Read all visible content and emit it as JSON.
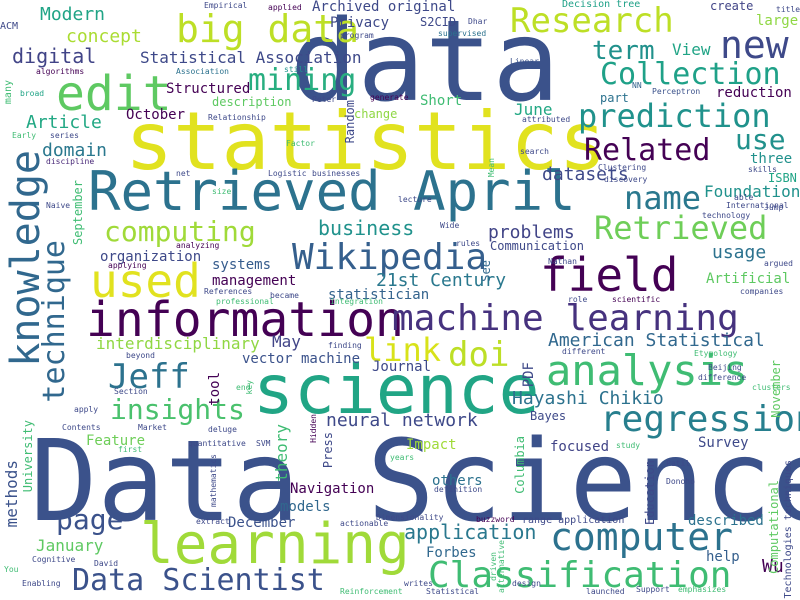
{
  "words": {
    "data_science": {
      "text": "Data Science",
      "color": "#3b528b"
    },
    "data": {
      "text": "data",
      "color": "#3b528b"
    },
    "statistics": {
      "text": "statistics",
      "color": "#e1e21f"
    },
    "retrieved_april": {
      "text": "Retrieved April",
      "color": "#2c728e"
    },
    "science": {
      "text": "science",
      "color": "#21a585"
    },
    "learning": {
      "text": "learning",
      "color": "#a0da39"
    },
    "information": {
      "text": "information",
      "color": "#440154"
    },
    "machine_learning": {
      "text": "machine learning",
      "color": "#46327e"
    },
    "knowledge": {
      "text": "knowledge",
      "color": "#31688e"
    },
    "edit": {
      "text": "edit",
      "color": "#5ec962"
    },
    "big_data": {
      "text": "big data",
      "color": "#bddf26"
    },
    "field": {
      "text": "field",
      "color": "#440154"
    },
    "analysis": {
      "text": "analysis",
      "color": "#3fbc73"
    },
    "research": {
      "text": "Research",
      "color": "#bddf26"
    },
    "new": {
      "text": "new",
      "color": "#3e4989"
    },
    "used": {
      "text": "used",
      "color": "#e1e21f"
    },
    "wikipedia": {
      "text": "Wikipedia",
      "color": "#355f8d"
    },
    "classification": {
      "text": "Classification",
      "color": "#3fbc73"
    },
    "data_scientist": {
      "text": "Data Scientist",
      "color": "#3b528b"
    },
    "computer": {
      "text": "computer",
      "color": "#2c728e"
    },
    "regression": {
      "text": "regression",
      "color": "#277f8e"
    },
    "prediction": {
      "text": "prediction",
      "color": "#20928c"
    },
    "collection": {
      "text": "Collection",
      "color": "#1fa188"
    },
    "technique": {
      "text": "technique",
      "color": "#31688e"
    },
    "related": {
      "text": "Related",
      "color": "#440154"
    },
    "retrieved": {
      "text": "Retrieved",
      "color": "#6ece58"
    },
    "name": {
      "text": "name",
      "color": "#2a788e"
    },
    "computing": {
      "text": "computing",
      "color": "#a0da39"
    },
    "mining": {
      "text": "mining",
      "color": "#28ae80"
    },
    "term": {
      "text": "term",
      "color": "#21918c"
    },
    "use": {
      "text": "use",
      "color": "#21918c"
    },
    "doi": {
      "text": "doi",
      "color": "#bddf26"
    },
    "jeff": {
      "text": "Jeff",
      "color": "#2c728e"
    },
    "insights": {
      "text": "insights",
      "color": "#4ac16d"
    },
    "link": {
      "text": "link",
      "color": "#d8e219"
    },
    "page": {
      "text": "page",
      "color": "#3b528b"
    },
    "modern": {
      "text": "Modern",
      "color": "#20a486"
    },
    "concept": {
      "text": "concept",
      "color": "#aadc32"
    },
    "statistical_association": {
      "text": "Statistical Association",
      "color": "#3e4989"
    },
    "digital": {
      "text": "digital",
      "color": "#414487"
    },
    "article": {
      "text": "Article",
      "color": "#22a884"
    },
    "domain": {
      "text": "domain",
      "color": "#2a788e"
    },
    "datasets": {
      "text": "datasets",
      "color": "#3e4989"
    },
    "foundation": {
      "text": "Foundation",
      "color": "#20928c"
    },
    "business": {
      "text": "business",
      "color": "#20928c"
    },
    "problems": {
      "text": "problems",
      "color": "#414487"
    },
    "usage": {
      "text": "usage",
      "color": "#2c728e"
    },
    "american_statistical": {
      "text": "American Statistical",
      "color": "#31688e"
    },
    "hayashi_chikio": {
      "text": "Hayashi Chikio",
      "color": "#2c728e"
    },
    "neural_network": {
      "text": "neural network",
      "color": "#3e4989"
    },
    "interdisciplinary": {
      "text": "interdisciplinary",
      "color": "#90d743"
    },
    "century": {
      "text": "21st Century",
      "color": "#2a788e"
    },
    "statistician": {
      "text": "statistician",
      "color": "#33638d"
    },
    "management": {
      "text": "management",
      "color": "#440154"
    },
    "systems": {
      "text": "systems",
      "color": "#365c8d"
    },
    "organization": {
      "text": "organization",
      "color": "#3e4989"
    },
    "application": {
      "text": "application",
      "color": "#2a788e"
    },
    "january": {
      "text": "January",
      "color": "#5ec962"
    },
    "forbes": {
      "text": "Forbes",
      "color": "#31688e"
    },
    "wu": {
      "text": "Wu",
      "color": "#440154"
    },
    "help": {
      "text": "help",
      "color": "#355f8d"
    },
    "described": {
      "text": "described",
      "color": "#2c728e"
    },
    "survey": {
      "text": "Survey",
      "color": "#3e4989"
    },
    "focused": {
      "text": "focused",
      "color": "#414487"
    },
    "impact": {
      "text": "Impact",
      "color": "#a0da39"
    },
    "others": {
      "text": "others",
      "color": "#2c728e"
    },
    "navigation": {
      "text": "Navigation",
      "color": "#440154"
    },
    "models": {
      "text": "models",
      "color": "#31688e"
    },
    "december": {
      "text": "December",
      "color": "#3b528b"
    },
    "feature": {
      "text": "Feature",
      "color": "#6ece58"
    },
    "vector_machine": {
      "text": "vector machine",
      "color": "#3b528b"
    },
    "may": {
      "text": "May",
      "color": "#414487"
    },
    "journal": {
      "text": "Journal",
      "color": "#3e4989"
    },
    "october": {
      "text": "October",
      "color": "#440154"
    },
    "structured": {
      "text": "Structured",
      "color": "#440154"
    },
    "description": {
      "text": "description",
      "color": "#5ec962"
    },
    "short": {
      "text": "Short",
      "color": "#3fbc73"
    },
    "june": {
      "text": "June",
      "color": "#22a884"
    },
    "view": {
      "text": "View",
      "color": "#20a486"
    },
    "privacy": {
      "text": "Privacy",
      "color": "#3e4989"
    },
    "archived_original": {
      "text": "Archived original",
      "color": "#3e4989"
    },
    "s2cid": {
      "text": "S2CID",
      "color": "#3e4989"
    },
    "communication": {
      "text": "Communication",
      "color": "#3e4989"
    },
    "see": {
      "text": "See",
      "color": "#31688e"
    },
    "artificial": {
      "text": "Artificial",
      "color": "#5ec962"
    },
    "three": {
      "text": "three",
      "color": "#21918c"
    },
    "isbn": {
      "text": "ISBN",
      "color": "#20a486"
    },
    "decision_tree": {
      "text": "Decision tree",
      "color": "#1fa188"
    },
    "create": {
      "text": "create",
      "color": "#414487"
    },
    "large": {
      "text": "large",
      "color": "#8fd744"
    },
    "reduction": {
      "text": "reduction",
      "color": "#440154"
    },
    "perceptron": {
      "text": "Perceptron",
      "color": "#3b528b"
    },
    "nn": {
      "text": "NN",
      "color": "#33638d"
    },
    "linear": {
      "text": "Linear",
      "color": "#3b528b"
    },
    "part": {
      "text": "part",
      "color": "#2c728e"
    },
    "change": {
      "text": "change",
      "color": "#8fd744"
    },
    "random": {
      "text": "Random",
      "color": "#3e4989"
    },
    "empirical": {
      "text": "Empirical",
      "color": "#3e4989"
    },
    "applied": {
      "text": "applied",
      "color": "#440154"
    },
    "dhar": {
      "text": "Dhar",
      "color": "#3e4989"
    },
    "supervised": {
      "text": "supervised",
      "color": "#2c728e"
    },
    "program": {
      "text": "program",
      "color": "#3e4989"
    },
    "still": {
      "text": "still",
      "color": "#20928c"
    },
    "association": {
      "text": "Association",
      "color": "#2c728e"
    },
    "peter": {
      "text": "Peter",
      "color": "#3e4989"
    },
    "generate": {
      "text": "generate",
      "color": "#440154"
    },
    "algorithms": {
      "text": "algorithms",
      "color": "#440154"
    },
    "broad": {
      "text": "broad",
      "color": "#20a486"
    },
    "series": {
      "text": "series",
      "color": "#3e4989"
    },
    "relationship": {
      "text": "Relationship",
      "color": "#3e4989"
    },
    "factor": {
      "text": "Factor",
      "color": "#3fbc73"
    },
    "discipline": {
      "text": "discipline",
      "color": "#482878"
    },
    "early": {
      "text": "Early",
      "color": "#3fbc73"
    },
    "naive": {
      "text": "Naive",
      "color": "#3e4989"
    },
    "net": {
      "text": "net",
      "color": "#3e4989"
    },
    "size": {
      "text": "size",
      "color": "#3fbc73"
    },
    "logistic": {
      "text": "Logistic",
      "color": "#3e4989"
    },
    "businesses": {
      "text": "businesses",
      "color": "#3e4989"
    },
    "wide": {
      "text": "Wide",
      "color": "#3e4989"
    },
    "lecture": {
      "text": "lecture",
      "color": "#3e4989"
    },
    "discovery": {
      "text": "discovery",
      "color": "#3e4989"
    },
    "clustering": {
      "text": "Clustering",
      "color": "#3e4989"
    },
    "international": {
      "text": "International",
      "color": "#3e4989"
    },
    "able": {
      "text": "able",
      "color": "#3e4989"
    },
    "jump": {
      "text": "Jump",
      "color": "#3e4989"
    },
    "technology": {
      "text": "technology",
      "color": "#3e4989"
    },
    "argued": {
      "text": "argued",
      "color": "#3e4989"
    },
    "nathan": {
      "text": "Nathan",
      "color": "#3e4989"
    },
    "rules": {
      "text": "rules",
      "color": "#3e4989"
    },
    "applying": {
      "text": "applying",
      "color": "#440154"
    },
    "analyzing": {
      "text": "analyzing",
      "color": "#440154"
    },
    "references": {
      "text": "References",
      "color": "#3e4989"
    },
    "became": {
      "text": "became",
      "color": "#3e4989"
    },
    "integration": {
      "text": "integration",
      "color": "#3fbc73"
    },
    "professional": {
      "text": "professional",
      "color": "#3fbc73"
    },
    "finding": {
      "text": "finding",
      "color": "#3e4989"
    },
    "role": {
      "text": "role",
      "color": "#3e4989"
    },
    "scientific": {
      "text": "scientific",
      "color": "#440154"
    },
    "companies": {
      "text": "companies",
      "color": "#3e4989"
    },
    "different": {
      "text": "different",
      "color": "#3e4989"
    },
    "etymology": {
      "text": "Etymology",
      "color": "#3fbc73"
    },
    "beijing": {
      "text": "Beijing",
      "color": "#3e4989"
    },
    "clusters": {
      "text": "clusters",
      "color": "#3fbc73"
    },
    "difference": {
      "text": "difference",
      "color": "#3e4989"
    },
    "november": {
      "text": "November",
      "color": "#5ec962"
    },
    "beyond": {
      "text": "beyond",
      "color": "#3e4989"
    },
    "section": {
      "text": "Section",
      "color": "#3e4989"
    },
    "end": {
      "text": "end",
      "color": "#3fbc73"
    },
    "key": {
      "text": "key",
      "color": "#3fbc73"
    },
    "tool": {
      "text": "tool",
      "color": "#440154"
    },
    "hidden": {
      "text": "Hidden",
      "color": "#440154"
    },
    "apply": {
      "text": "apply",
      "color": "#3e4989"
    },
    "market": {
      "text": "Market",
      "color": "#3e4989"
    },
    "contents": {
      "text": "Contents",
      "color": "#3e4989"
    },
    "deluge": {
      "text": "deluge",
      "color": "#3e4989"
    },
    "quantitative": {
      "text": "quantitative",
      "color": "#3e4989"
    },
    "svm": {
      "text": "SVM",
      "color": "#3e4989"
    },
    "first": {
      "text": "first",
      "color": "#3fbc73"
    },
    "mathematics": {
      "text": "mathematics",
      "color": "#3e4989"
    },
    "years": {
      "text": "years",
      "color": "#3fbc73"
    },
    "study": {
      "text": "study",
      "color": "#3fbc73"
    },
    "patil": {
      "text": "Patil",
      "color": "#3e4989"
    },
    "donoho": {
      "text": "Donoho",
      "color": "#3e4989"
    },
    "definition": {
      "text": "definition",
      "color": "#3e4989"
    },
    "press": {
      "text": "Press",
      "color": "#3e4989"
    },
    "theory": {
      "text": "theory",
      "color": "#3fbc73"
    },
    "columbia": {
      "text": "Columbia",
      "color": "#3fbc73"
    },
    "university": {
      "text": "University",
      "color": "#3fbc73"
    },
    "methods": {
      "text": "methods",
      "color": "#3b528b"
    },
    "education": {
      "text": "Education",
      "color": "#3e4989"
    },
    "computational": {
      "text": "Computational",
      "color": "#5ec962"
    },
    "technologies_techniques": {
      "text": "Technologies techniques",
      "color": "#3e4989"
    },
    "extract": {
      "text": "extract",
      "color": "#3e4989"
    },
    "actionable": {
      "text": "actionable",
      "color": "#3e4989"
    },
    "dimensionality": {
      "text": "Dimensionality",
      "color": "#3e4989"
    },
    "buzzword": {
      "text": "buzzword",
      "color": "#440154"
    },
    "range_application": {
      "text": "range application",
      "color": "#3e4989"
    },
    "david": {
      "text": "David",
      "color": "#3e4989"
    },
    "cognitive": {
      "text": "Cognitive",
      "color": "#3e4989"
    },
    "enabling": {
      "text": "Enabling",
      "color": "#3e4989"
    },
    "you": {
      "text": "You",
      "color": "#3fbc73"
    },
    "reinforcement": {
      "text": "Reinforcement",
      "color": "#3fbc73"
    },
    "writes": {
      "text": "writes",
      "color": "#3e4989"
    },
    "statistical": {
      "text": "Statistical",
      "color": "#3e4989"
    },
    "alternative": {
      "text": "alternative",
      "color": "#3fbc73"
    },
    "driven": {
      "text": "driven",
      "color": "#3fbc73"
    },
    "design": {
      "text": "design",
      "color": "#3e4989"
    },
    "launched": {
      "text": "launched",
      "color": "#3e4989"
    },
    "support": {
      "text": "Support",
      "color": "#3e4989"
    },
    "emphasizes": {
      "text": "emphasizes",
      "color": "#3fbc73"
    },
    "acm": {
      "text": "ACM",
      "color": "#3e4989"
    },
    "many": {
      "text": "many",
      "color": "#3fbc73"
    },
    "september": {
      "text": "September",
      "color": "#3fbc73"
    },
    "search": {
      "text": "search",
      "color": "#3e4989"
    },
    "attributed": {
      "text": "attributed",
      "color": "#3e4989"
    },
    "skills": {
      "text": "skills",
      "color": "#3e4989"
    },
    "mean": {
      "text": "Mean",
      "color": "#3fbc73"
    },
    "title": {
      "text": "title",
      "color": "#3e4989"
    },
    "bayes": {
      "text": "Bayes",
      "color": "#3e4989"
    },
    "pdf": {
      "text": "PDF",
      "color": "#3e4989"
    }
  }
}
